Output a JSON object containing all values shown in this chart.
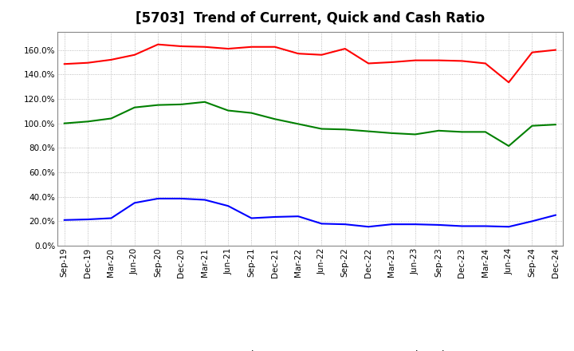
{
  "title": "[5703]  Trend of Current, Quick and Cash Ratio",
  "x_labels": [
    "Sep-19",
    "Dec-19",
    "Mar-20",
    "Jun-20",
    "Sep-20",
    "Dec-20",
    "Mar-21",
    "Jun-21",
    "Sep-21",
    "Dec-21",
    "Mar-22",
    "Jun-22",
    "Sep-22",
    "Dec-22",
    "Mar-23",
    "Jun-23",
    "Sep-23",
    "Dec-23",
    "Mar-24",
    "Jun-24",
    "Sep-24",
    "Dec-24"
  ],
  "current_ratio": [
    148.5,
    149.5,
    152.0,
    156.0,
    164.5,
    163.0,
    162.5,
    161.0,
    162.5,
    162.5,
    157.0,
    156.0,
    161.0,
    149.0,
    150.0,
    151.5,
    151.5,
    151.0,
    149.0,
    133.5,
    158.0,
    160.0
  ],
  "quick_ratio": [
    100.0,
    101.5,
    104.0,
    113.0,
    115.0,
    115.5,
    117.5,
    110.5,
    108.5,
    103.5,
    99.5,
    95.5,
    95.0,
    93.5,
    92.0,
    91.0,
    94.0,
    93.0,
    93.0,
    81.5,
    98.0,
    99.0
  ],
  "cash_ratio": [
    21.0,
    21.5,
    22.5,
    35.0,
    38.5,
    38.5,
    37.5,
    32.5,
    22.5,
    23.5,
    24.0,
    18.0,
    17.5,
    15.5,
    17.5,
    17.5,
    17.0,
    16.0,
    16.0,
    15.5,
    20.0,
    25.0
  ],
  "current_color": "#FF0000",
  "quick_color": "#008000",
  "cash_color": "#0000FF",
  "bg_color": "#FFFFFF",
  "plot_bg_color": "#FFFFFF",
  "grid_color": "#AAAAAA",
  "ylim": [
    0,
    175
  ],
  "yticks": [
    0,
    20,
    40,
    60,
    80,
    100,
    120,
    140,
    160
  ],
  "legend_labels": [
    "Current Ratio",
    "Quick Ratio",
    "Cash Ratio"
  ],
  "title_fontsize": 12,
  "tick_fontsize": 7.5,
  "legend_fontsize": 9,
  "line_width": 1.5
}
